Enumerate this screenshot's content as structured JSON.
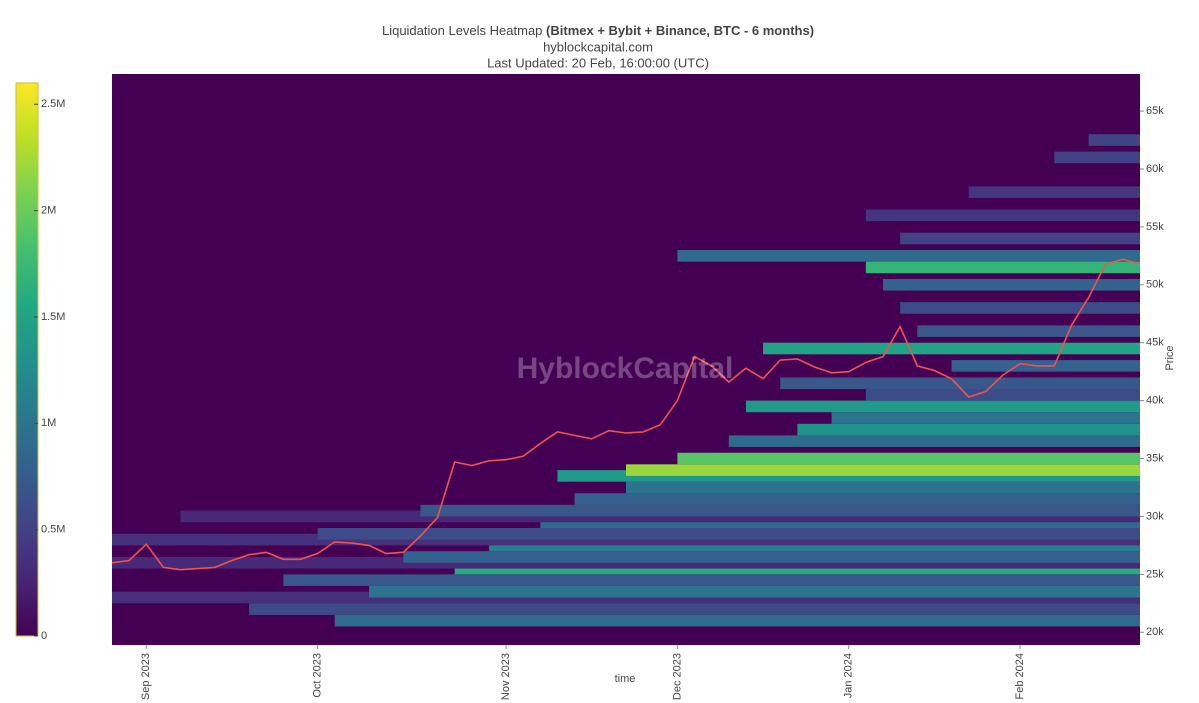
{
  "chart_data": {
    "type": "heatmap",
    "title": "Liquidation Levels Heatmap",
    "title_emphasis": "(Bitmex + Bybit + Binance, BTC - 6 months)",
    "subtitle": [
      "hyblockcapital.com",
      "Last Updated: 20 Feb, 16:00:00 (UTC)"
    ],
    "watermark": "HyblockCapital",
    "xlabel": "time",
    "ylabel": "Price",
    "categories": [
      null,
      null,
      "Sep 2023",
      null,
      null,
      null,
      null,
      null,
      null,
      null,
      null,
      null,
      "Oct 2023",
      null,
      null,
      null,
      null,
      null,
      null,
      null,
      null,
      null,
      null,
      "Nov 2023",
      null,
      null,
      null,
      null,
      null,
      null,
      null,
      null,
      null,
      "Dec 2023",
      null,
      null,
      null,
      null,
      null,
      null,
      null,
      null,
      null,
      "Jan 2024",
      null,
      null,
      null,
      null,
      null,
      null,
      null,
      null,
      null,
      "Feb 2024",
      null,
      null,
      null,
      null,
      null,
      null,
      null
    ],
    "ylim": [
      18900,
      68200
    ],
    "yticks": [
      {
        "value": 20000,
        "label": "20k"
      },
      {
        "value": 25000,
        "label": "25k"
      },
      {
        "value": 30000,
        "label": "30k"
      },
      {
        "value": 35000,
        "label": "35k"
      },
      {
        "value": 40000,
        "label": "40k"
      },
      {
        "value": 45000,
        "label": "45k"
      },
      {
        "value": 50000,
        "label": "50k"
      },
      {
        "value": 55000,
        "label": "55k"
      },
      {
        "value": 60000,
        "label": "60k"
      },
      {
        "value": 65000,
        "label": "65k"
      }
    ],
    "colorscale": "Viridis",
    "clim": [
      0,
      2600000
    ],
    "cticks": [
      0,
      {
        "value": 500000,
        "label": "0.5M"
      },
      {
        "value": 1000000,
        "label": "1M"
      },
      {
        "value": 1500000,
        "label": "1.5M"
      },
      {
        "value": 2000000,
        "label": "2M"
      },
      {
        "value": 2500000,
        "label": "2.5M"
      }
    ],
    "bands": {
      "price": [
        21000,
        22000,
        23000,
        23500,
        24500,
        25500,
        26000,
        26500,
        27500,
        28000,
        28500,
        29500,
        30000,
        30500,
        31500,
        32500,
        33500,
        34000,
        35000,
        36500,
        37500,
        38500,
        39500,
        40500,
        41500,
        43000,
        44500,
        46000,
        48000,
        50000,
        51500,
        52500,
        54000,
        56000,
        58000,
        61000,
        62500
      ],
      "start": [
        13,
        8,
        0,
        15,
        10,
        20,
        0,
        17,
        22,
        0,
        12,
        25,
        4,
        18,
        27,
        30,
        26,
        30,
        33,
        36,
        40,
        42,
        37,
        44,
        39,
        49,
        38,
        47,
        46,
        45,
        44,
        33,
        46,
        44,
        50,
        55,
        57
      ],
      "values": [
        900000,
        600000,
        350000,
        1000000,
        700000,
        1600000,
        300000,
        800000,
        1100000,
        350000,
        600000,
        900000,
        300000,
        700000,
        800000,
        1000000,
        1400000,
        2200000,
        1900000,
        900000,
        1300000,
        1000000,
        1400000,
        600000,
        700000,
        800000,
        1500000,
        700000,
        600000,
        800000,
        1700000,
        900000,
        500000,
        400000,
        400000,
        500000,
        500000
      ]
    },
    "price_series": {
      "color": "#ef5350",
      "values": [
        26000,
        26200,
        27600,
        25600,
        25400,
        25500,
        25600,
        26200,
        26700,
        26900,
        26300,
        26300,
        26800,
        27800,
        27700,
        27500,
        26800,
        26900,
        28300,
        29900,
        34700,
        34400,
        34800,
        34900,
        35200,
        36300,
        37300,
        37000,
        36700,
        37400,
        37200,
        37300,
        37900,
        40000,
        43800,
        43000,
        41600,
        42800,
        41900,
        43500,
        43600,
        42900,
        42400,
        42500,
        43300,
        43800,
        46400,
        43000,
        42600,
        41900,
        40300,
        40800,
        42200,
        43200,
        43000,
        43000,
        46500,
        48900,
        51800,
        52200,
        51800
      ]
    }
  }
}
